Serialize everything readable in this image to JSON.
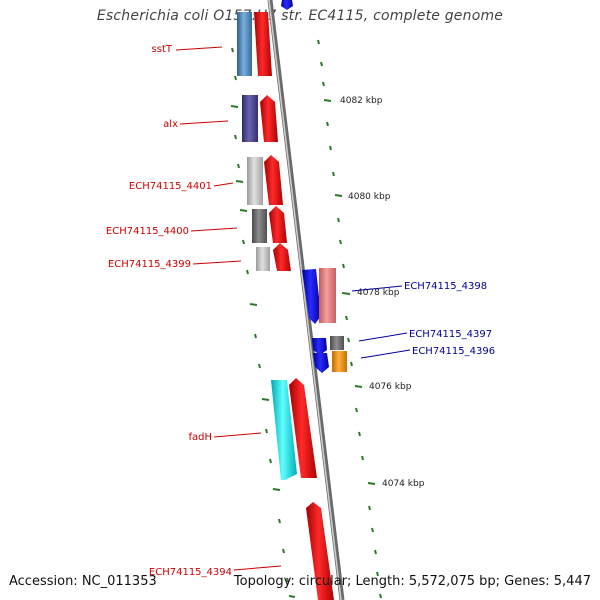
{
  "title": "Escherichia coli O157:H7 str. EC4115, complete genome",
  "accession": "Accession: NC_011353",
  "topology": "Topology: circular; Length: 5,572,075 bp; Genes: 5,447",
  "colors": {
    "label_red": "#cc0000",
    "label_blue": "#000099",
    "tick_green": "#2a7a2a",
    "backbone": "#8a8a8a",
    "gene_red": "#ff1a1a",
    "gene_blue": "#1010ee",
    "gene_cyan": "#00e5ee",
    "gene_pink": "#f08a8a",
    "gene_orange": "#ff9500"
  },
  "scale_ticks": [
    "4082 kbp",
    "4080 kbp",
    "4078 kbp",
    "4076 kbp",
    "4074 kbp"
  ],
  "gene_labels_left": [
    "sstT",
    "alx",
    "ECH74115_4401",
    "ECH74115_4400",
    "ECH74115_4399",
    "fadH",
    "ECH74115_4394"
  ],
  "gene_labels_right": [
    "ECH74115_4398",
    "ECH74115_4397",
    "ECH74115_4396"
  ]
}
